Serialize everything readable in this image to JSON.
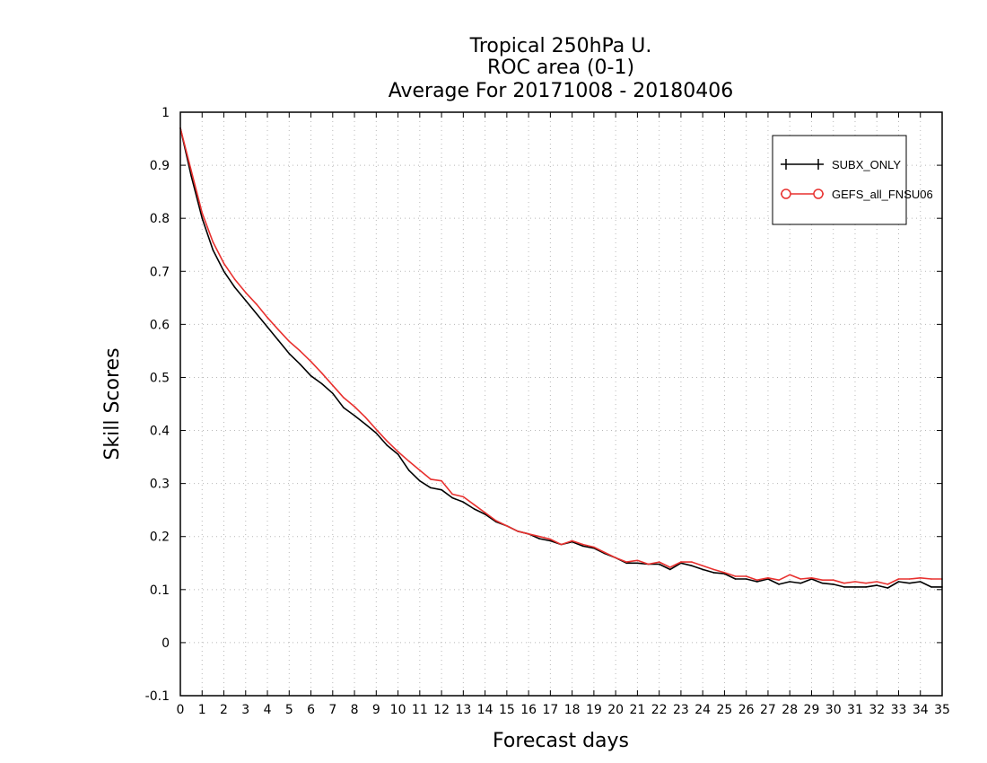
{
  "chart_data": {
    "type": "line",
    "title": [
      "Tropical 250hPa U.",
      "ROC area (0-1)",
      "Average For 20171008 - 20180406"
    ],
    "xlabel": "Forecast days",
    "ylabel": "Skill Scores",
    "xlim": [
      0,
      35
    ],
    "ylim": [
      -0.1,
      1
    ],
    "x_ticks": [
      0,
      1,
      2,
      3,
      4,
      5,
      6,
      7,
      8,
      9,
      10,
      11,
      12,
      13,
      14,
      15,
      16,
      17,
      18,
      19,
      20,
      21,
      22,
      23,
      24,
      25,
      26,
      27,
      28,
      29,
      30,
      31,
      32,
      33,
      34,
      35
    ],
    "y_ticks": [
      -0.1,
      0,
      0.1,
      0.2,
      0.3,
      0.4,
      0.5,
      0.6,
      0.7,
      0.8,
      0.9,
      1
    ],
    "y_tick_labels": [
      "-0.1",
      "0",
      "0.1",
      "0.2",
      "0.3",
      "0.4",
      "0.5",
      "0.6",
      "0.7",
      "0.8",
      "0.9",
      "1"
    ],
    "grid": true,
    "legend_position": "top-right",
    "series": [
      {
        "name": "SUBX_ONLY",
        "color": "#000000",
        "marker": "plus",
        "x": [
          0,
          0.5,
          1,
          1.5,
          2,
          2.5,
          3,
          3.5,
          4,
          4.5,
          5,
          5.5,
          6,
          6.5,
          7,
          7.5,
          8,
          8.5,
          9,
          9.5,
          10,
          10.5,
          11,
          11.5,
          12,
          12.5,
          13,
          13.5,
          14,
          14.5,
          15,
          15.5,
          16,
          16.5,
          17,
          17.5,
          18,
          18.5,
          19,
          19.5,
          20,
          20.5,
          21,
          21.5,
          22,
          22.5,
          23,
          23.5,
          24,
          24.5,
          25,
          25.5,
          26,
          26.5,
          27,
          27.5,
          28,
          28.5,
          29,
          29.5,
          30,
          30.5,
          31,
          31.5,
          32,
          32.5,
          33,
          33.5,
          34,
          34.5,
          35
        ],
        "y": [
          0.97,
          0.88,
          0.8,
          0.74,
          0.7,
          0.67,
          0.645,
          0.62,
          0.595,
          0.57,
          0.545,
          0.525,
          0.503,
          0.488,
          0.47,
          0.443,
          0.428,
          0.412,
          0.395,
          0.372,
          0.355,
          0.325,
          0.305,
          0.292,
          0.288,
          0.273,
          0.265,
          0.252,
          0.242,
          0.228,
          0.22,
          0.21,
          0.205,
          0.196,
          0.192,
          0.185,
          0.19,
          0.182,
          0.178,
          0.168,
          0.16,
          0.15,
          0.15,
          0.148,
          0.148,
          0.138,
          0.15,
          0.145,
          0.138,
          0.132,
          0.13,
          0.12,
          0.12,
          0.115,
          0.12,
          0.11,
          0.115,
          0.112,
          0.12,
          0.112,
          0.11,
          0.105,
          0.105,
          0.105,
          0.108,
          0.103,
          0.115,
          0.112,
          0.115,
          0.105,
          0.105
        ]
      },
      {
        "name": "GEFS_all_FNSU06",
        "color": "#e8312f",
        "marker": "circle",
        "x": [
          0,
          0.5,
          1,
          1.5,
          2,
          2.5,
          3,
          3.5,
          4,
          4.5,
          5,
          5.5,
          6,
          6.5,
          7,
          7.5,
          8,
          8.5,
          9,
          9.5,
          10,
          10.5,
          11,
          11.5,
          12,
          12.5,
          13,
          13.5,
          14,
          14.5,
          15,
          15.5,
          16,
          16.5,
          17,
          17.5,
          18,
          18.5,
          19,
          19.5,
          20,
          20.5,
          21,
          21.5,
          22,
          22.5,
          23,
          23.5,
          24,
          24.5,
          25,
          25.5,
          26,
          26.5,
          27,
          27.5,
          28,
          28.5,
          29,
          29.5,
          30,
          30.5,
          31,
          31.5,
          32,
          32.5,
          33,
          33.5,
          34,
          34.5,
          35
        ],
        "y": [
          0.97,
          0.89,
          0.81,
          0.755,
          0.715,
          0.685,
          0.66,
          0.638,
          0.613,
          0.59,
          0.568,
          0.55,
          0.53,
          0.508,
          0.485,
          0.462,
          0.445,
          0.425,
          0.402,
          0.38,
          0.36,
          0.342,
          0.325,
          0.308,
          0.305,
          0.28,
          0.275,
          0.26,
          0.245,
          0.23,
          0.22,
          0.21,
          0.205,
          0.2,
          0.195,
          0.185,
          0.192,
          0.185,
          0.18,
          0.17,
          0.16,
          0.152,
          0.155,
          0.148,
          0.152,
          0.142,
          0.152,
          0.152,
          0.145,
          0.138,
          0.132,
          0.125,
          0.125,
          0.118,
          0.122,
          0.118,
          0.128,
          0.12,
          0.122,
          0.118,
          0.118,
          0.112,
          0.115,
          0.112,
          0.115,
          0.11,
          0.12,
          0.12,
          0.122,
          0.12,
          0.12
        ]
      }
    ]
  }
}
